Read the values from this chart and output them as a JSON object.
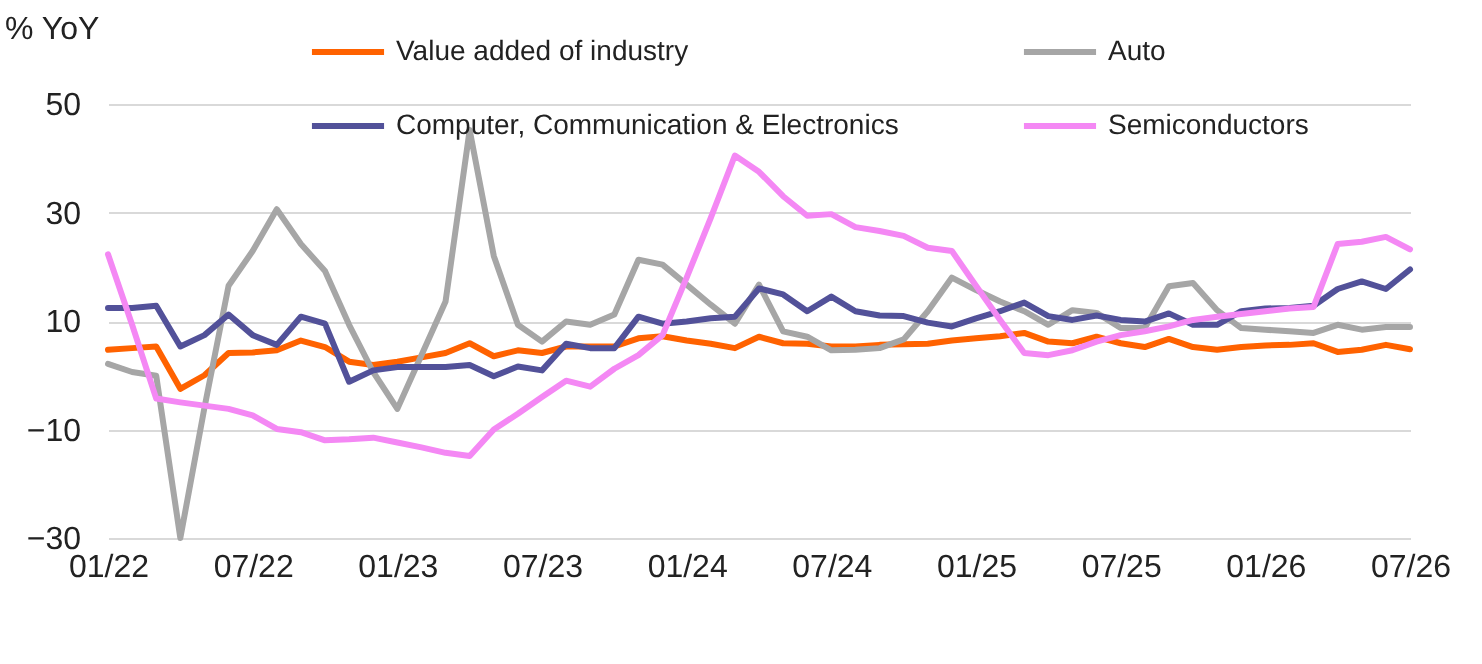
{
  "chart_data": {
    "type": "line",
    "ylabel": "% YoY",
    "categories": [
      "01/22",
      null,
      null,
      null,
      null,
      null,
      "07/22",
      null,
      null,
      null,
      null,
      null,
      "01/23",
      null,
      null,
      null,
      null,
      null,
      "07/23",
      null,
      null,
      null,
      null,
      null,
      "01/24",
      null,
      null,
      null,
      null,
      null,
      "07/24",
      null,
      null,
      null,
      null,
      null,
      "01/25",
      null,
      null,
      null,
      null,
      null,
      "07/25",
      null,
      null,
      null,
      null,
      null,
      "01/26",
      null,
      null,
      null,
      null,
      null,
      "07/26"
    ],
    "series": [
      {
        "name": "Value added of industry",
        "color": "#ff6200",
        "values": [
          4.7,
          5.0,
          5.3,
          -2.5,
          0,
          4.1,
          4.2,
          4.6,
          6.4,
          5.2,
          2.5,
          1.9,
          2.5,
          3.3,
          4.1,
          5.9,
          3.5,
          4.6,
          4.1,
          5.3,
          5.3,
          5.3,
          6.8,
          7.2,
          6.4,
          5.8,
          5.0,
          7.1,
          5.9,
          5.8,
          5.3,
          5.3,
          5.6,
          5.7,
          5.8,
          6.4,
          6.8,
          7.2,
          7.8,
          6.2,
          5.9,
          7.1,
          5.9,
          5.2,
          6.7,
          5.2,
          4.7,
          5.2,
          5.5,
          5.6,
          5.9,
          4.3,
          4.7,
          5.6,
          4.8
        ]
      },
      {
        "name": "Auto",
        "color": "#a6a6a6",
        "values": [
          2.1,
          0.6,
          -0.1,
          -30,
          -6,
          16.5,
          22.9,
          30.6,
          24.2,
          19.2,
          9.3,
          0.6,
          -6.2,
          3.7,
          13.6,
          45.2,
          22,
          9.3,
          6.2,
          9.9,
          9.3,
          11.2,
          21.3,
          20.4,
          16.7,
          13,
          9.5,
          16.7,
          8.1,
          7.1,
          4.6,
          4.7,
          5.0,
          6.6,
          11.8,
          18,
          15.7,
          13.6,
          11.8,
          9.3,
          12,
          11.5,
          8.7,
          8.7,
          16.4,
          17,
          12,
          8.7,
          8.4,
          8.1,
          7.8,
          9.3,
          8.4,
          8.9,
          8.9
        ]
      },
      {
        "name": "Computer, Communication & Electronics",
        "color": "#525199",
        "values": [
          12.4,
          12.4,
          12.8,
          5.3,
          7.4,
          11.2,
          7.4,
          5.6,
          10.8,
          9.5,
          -1.2,
          0.9,
          1.5,
          1.5,
          1.5,
          1.9,
          -0.2,
          1.6,
          0.9,
          5.8,
          5.0,
          5.0,
          10.8,
          9.5,
          9.9,
          10.5,
          10.8,
          16,
          14.9,
          11.8,
          14.5,
          11.8,
          11.0,
          10.9,
          9.7,
          9.0,
          10.5,
          11.8,
          13.4,
          10.9,
          10.2,
          11.0,
          10.2,
          9.9,
          11.4,
          9.3,
          9.3,
          11.8,
          12.3,
          12.4,
          12.8,
          15.9,
          17.3,
          15.9,
          19.5
        ]
      },
      {
        "name": "Semiconductors",
        "color": "#f488f4",
        "values": [
          22.3,
          9.3,
          -4.3,
          -5.0,
          -5.6,
          -6.2,
          -7.4,
          -9.9,
          -10.5,
          -12,
          -11.8,
          -11.5,
          -12.4,
          -13.3,
          -14.3,
          -14.9,
          -10,
          -7.1,
          -4.0,
          -1.0,
          -2.1,
          1.2,
          3.7,
          7.4,
          18,
          29,
          40.5,
          37.5,
          33,
          29.4,
          29.7,
          27.3,
          26.6,
          25.7,
          23.5,
          22.9,
          16.5,
          10.2,
          4.1,
          3.7,
          4.6,
          6.2,
          7.4,
          8.1,
          9.0,
          10.2,
          10.8,
          11.3,
          11.8,
          12.3,
          12.6,
          24.2,
          24.6,
          25.5,
          23.2
        ]
      }
    ],
    "ylim": [
      -30,
      50
    ],
    "yticks": [
      -30,
      -10,
      10,
      30,
      50
    ],
    "grid": "y",
    "legend": "top",
    "marker": "none",
    "line_style": "solid"
  }
}
